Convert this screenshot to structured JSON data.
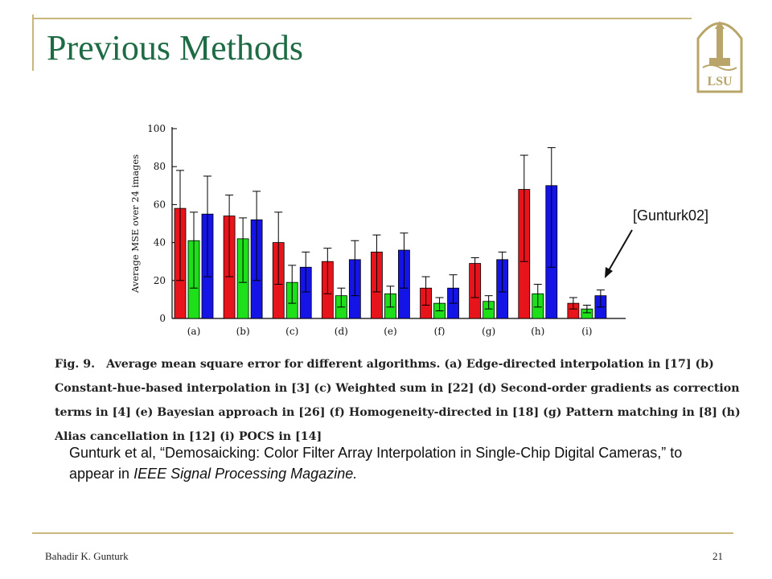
{
  "slide": {
    "title": "Previous Methods",
    "tag": "[Gunturk02]",
    "reference": {
      "prefix": "Gunturk et al, “Demosaicking: Color Filter Array Interpolation in Single-Chip Digital Cameras,” to appear in ",
      "journal": "IEEE Signal Processing Magazine."
    },
    "footer_author": "Bahadir K. Gunturk",
    "page_number": "21",
    "logo_text": "LSU"
  },
  "caption": {
    "label": "Fig. 9.",
    "text": "Average mean square error for different algorithms. (a) Edge-directed interpolation in [17] (b) Constant-hue-based interpolation in [3] (c) Weighted sum in [22] (d) Second-order gradients as correction terms in [4] (e) Bayesian approach in [26] (f) Homogeneity-directed in [18] (g) Pattern matching in [8] (h) Alias cancellation in [12] (i) POCS in [14]"
  },
  "chart_data": {
    "type": "bar",
    "ylabel": "Average MSE over 24 images",
    "ylim": [
      0,
      100
    ],
    "yticks": [
      0,
      20,
      40,
      60,
      80,
      100
    ],
    "categories": [
      "(a)",
      "(b)",
      "(c)",
      "(d)",
      "(e)",
      "(f)",
      "(g)",
      "(h)",
      "(i)"
    ],
    "series": [
      {
        "color": "#e8141b",
        "values": [
          58,
          54,
          40,
          30,
          35,
          16,
          29,
          68,
          8
        ],
        "err_low": [
          20,
          22,
          18,
          13,
          14,
          7,
          11,
          30,
          5
        ],
        "err_high": [
          78,
          65,
          56,
          37,
          44,
          22,
          32,
          86,
          11
        ]
      },
      {
        "color": "#1de01a",
        "values": [
          41,
          42,
          19,
          12,
          13,
          8,
          9,
          13,
          5
        ],
        "err_low": [
          16,
          19,
          8,
          6,
          6,
          4,
          5,
          6,
          3
        ],
        "err_high": [
          56,
          53,
          28,
          16,
          17,
          11,
          12,
          18,
          7
        ]
      },
      {
        "color": "#1414e6",
        "values": [
          55,
          52,
          27,
          31,
          36,
          16,
          31,
          70,
          12
        ],
        "err_low": [
          22,
          20,
          14,
          12,
          16,
          8,
          14,
          27,
          6
        ],
        "err_high": [
          75,
          67,
          35,
          41,
          45,
          23,
          35,
          90,
          15
        ]
      }
    ],
    "grid": false,
    "legend": "none"
  }
}
